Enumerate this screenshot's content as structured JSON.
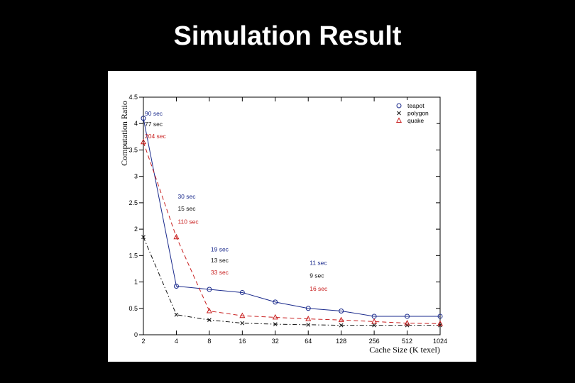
{
  "slide": {
    "title": "Simulation Result"
  },
  "colors": {
    "teapot": "#1a2a8c",
    "polygon": "#111111",
    "quake": "#c81e1e"
  },
  "chart_data": {
    "type": "line",
    "title": "",
    "xlabel": "Cache Size (K texel)",
    "ylabel": "Computation Ratio",
    "categories": [
      "2",
      "4",
      "8",
      "16",
      "32",
      "64",
      "128",
      "256",
      "512",
      "1024"
    ],
    "x_tick_labels": [
      "2",
      "4",
      "8",
      "16",
      "32",
      "64",
      "128",
      "256",
      "512",
      "1024"
    ],
    "y_tick_labels": [
      "0",
      "0.5",
      "1",
      "1.5",
      "2",
      "2.5",
      "3",
      "3.5",
      "4",
      "4.5"
    ],
    "ylim": [
      0,
      4.5
    ],
    "grid": false,
    "legend_position": "top-right",
    "series": [
      {
        "name": "teapot",
        "marker": "circle",
        "line_style": "solid",
        "color": "#1a2a8c",
        "values": [
          4.1,
          0.92,
          0.86,
          0.8,
          0.62,
          0.5,
          0.45,
          0.35,
          0.35,
          0.35
        ]
      },
      {
        "name": "polygon",
        "marker": "cross",
        "line_style": "dash-dot",
        "color": "#111111",
        "values": [
          1.85,
          0.38,
          0.28,
          0.22,
          0.2,
          0.19,
          0.18,
          0.18,
          0.18,
          0.18
        ]
      },
      {
        "name": "quake",
        "marker": "triangle",
        "line_style": "dashed",
        "color": "#c81e1e",
        "values": [
          3.65,
          1.85,
          0.45,
          0.36,
          0.33,
          0.3,
          0.28,
          0.25,
          0.22,
          0.21
        ]
      }
    ],
    "annotations": [
      {
        "text": "90 sec",
        "series": "teapot",
        "x_index": 0,
        "y": 4.15
      },
      {
        "text": "77 sec",
        "series": "polygon",
        "x_index": 0,
        "y": 3.95
      },
      {
        "text": "204 sec",
        "series": "quake",
        "x_index": 0,
        "y": 3.72
      },
      {
        "text": "30 sec",
        "series": "teapot",
        "x_index": 1,
        "y": 2.58
      },
      {
        "text": "15 sec",
        "series": "polygon",
        "x_index": 1,
        "y": 2.35
      },
      {
        "text": "110 sec",
        "series": "quake",
        "x_index": 1,
        "y": 2.1
      },
      {
        "text": "19 sec",
        "series": "teapot",
        "x_index": 2,
        "y": 1.58
      },
      {
        "text": "13 sec",
        "series": "polygon",
        "x_index": 2,
        "y": 1.37
      },
      {
        "text": "33 sec",
        "series": "quake",
        "x_index": 2,
        "y": 1.14
      },
      {
        "text": "11 sec",
        "series": "teapot",
        "x_index": 5,
        "y": 1.32
      },
      {
        "text": "9 sec",
        "series": "polygon",
        "x_index": 5,
        "y": 1.08
      },
      {
        "text": "16 sec",
        "series": "quake",
        "x_index": 5,
        "y": 0.83
      }
    ]
  }
}
